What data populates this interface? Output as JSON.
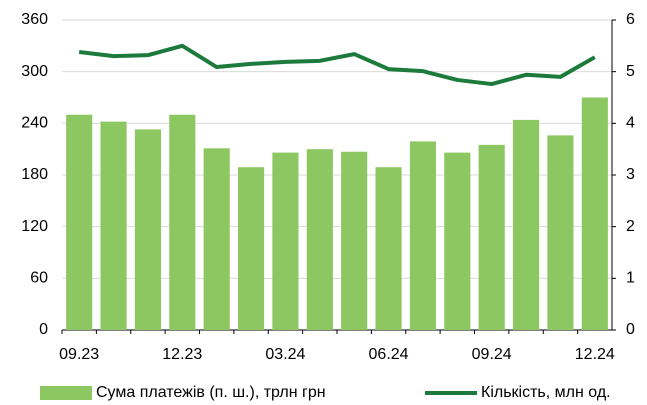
{
  "chart_data": {
    "type": "bar",
    "categories": [
      "09.23",
      null,
      null,
      "12.23",
      null,
      null,
      "03.24",
      null,
      null,
      "06.24",
      null,
      null,
      "09.24",
      null,
      null,
      "12.24"
    ],
    "series": [
      {
        "name": "Сума платежів (п. ш.), трлн грн",
        "type": "bar",
        "color": "#8cc762",
        "values": [
          250,
          242,
          233,
          250,
          211,
          189,
          206,
          210,
          207,
          189,
          219,
          206,
          215,
          244,
          226,
          270
        ]
      },
      {
        "name": "Кількість, млн од.",
        "type": "line",
        "axis": "y2",
        "color": "#1b7a3c",
        "values": [
          5.38,
          5.3,
          5.32,
          5.5,
          5.09,
          5.15,
          5.19,
          5.21,
          5.34,
          5.05,
          5.01,
          4.84,
          4.76,
          4.94,
          4.9,
          5.28
        ]
      }
    ],
    "ylim": [
      0,
      360
    ],
    "yticks": [
      0,
      60,
      120,
      180,
      240,
      300,
      360
    ],
    "y2lim": [
      0,
      6
    ],
    "y2ticks": [
      0,
      1,
      2,
      3,
      4,
      5,
      6
    ],
    "grid": true,
    "legend": "bottom"
  }
}
